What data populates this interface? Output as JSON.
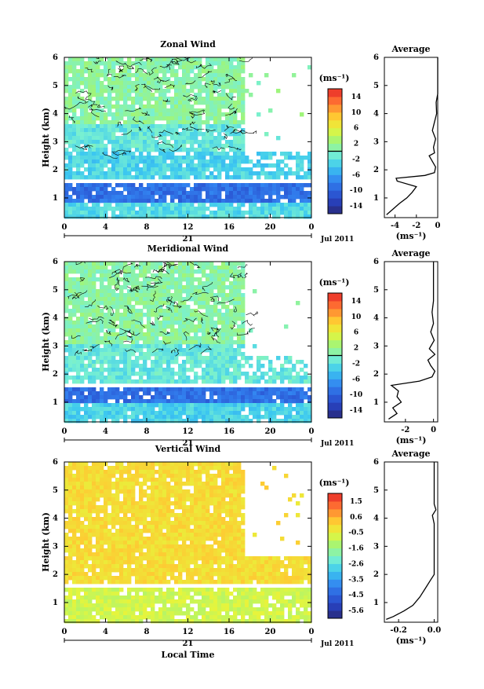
{
  "chart_data": [
    {
      "type": "heatmap",
      "title": "Zonal Wind",
      "ylabel": "Height (km)",
      "xlabel": "",
      "x_ticks": [
        "0",
        "4",
        "8",
        "12",
        "16",
        "20",
        "0"
      ],
      "y_ticks": [
        "1",
        "2",
        "3",
        "4",
        "5",
        "6"
      ],
      "ylim": [
        0.3,
        6.0
      ],
      "xlim": [
        0,
        24
      ],
      "date_day": "21",
      "date_label": "Jul 2011",
      "colorbar": {
        "unit": "(ms⁻¹)",
        "ticks": [
          "14",
          "10",
          "6",
          "2",
          "-2",
          "-6",
          "-10",
          "-14"
        ],
        "min": -16,
        "max": 16,
        "contour_level": 0
      },
      "layers": [
        {
          "z0": 3.6,
          "z1": 6.0,
          "value": 1.0
        },
        {
          "z0": 2.6,
          "z1": 3.6,
          "value": -1.5
        },
        {
          "z0": 1.7,
          "z1": 2.6,
          "value": -3.0
        },
        {
          "z0": 1.5,
          "z1": 1.7,
          "value": null
        },
        {
          "z0": 0.9,
          "z1": 1.5,
          "value": -9.0
        },
        {
          "z0": 0.3,
          "z1": 0.9,
          "value": -2.5
        }
      ],
      "data_end_hour": 17.5,
      "average": {
        "title": "Average",
        "xlabel": "(ms⁻¹)",
        "x_ticks": [
          "-4",
          "-2",
          "0"
        ],
        "xlim": [
          -5,
          0
        ],
        "y_ticks": [
          "1",
          "2",
          "3",
          "4",
          "5",
          "6"
        ],
        "profile": [
          [
            -4.8,
            0.4
          ],
          [
            -4.2,
            0.6
          ],
          [
            -3.6,
            0.8
          ],
          [
            -2.9,
            1.0
          ],
          [
            -2.4,
            1.2
          ],
          [
            -2.0,
            1.4
          ],
          [
            -3.8,
            1.6
          ],
          [
            -3.9,
            1.7
          ],
          [
            -1.2,
            1.8
          ],
          [
            -0.3,
            1.9
          ],
          [
            -0.2,
            2.1
          ],
          [
            -0.5,
            2.3
          ],
          [
            -0.8,
            2.5
          ],
          [
            -0.3,
            2.6
          ],
          [
            -0.4,
            2.8
          ],
          [
            -0.2,
            3.1
          ],
          [
            -0.5,
            3.4
          ],
          [
            -0.3,
            3.7
          ],
          [
            -0.1,
            4.0
          ],
          [
            -0.15,
            4.4
          ],
          [
            0,
            4.7
          ],
          [
            0,
            6.0
          ]
        ]
      }
    },
    {
      "type": "heatmap",
      "title": "Meridional Wind",
      "ylabel": "Height (km)",
      "xlabel": "",
      "x_ticks": [
        "0",
        "4",
        "8",
        "12",
        "16",
        "20",
        "0"
      ],
      "y_ticks": [
        "1",
        "2",
        "3",
        "4",
        "5",
        "6"
      ],
      "ylim": [
        0.3,
        6.0
      ],
      "xlim": [
        0,
        24
      ],
      "date_day": "21",
      "date_label": "Jul 2011",
      "colorbar": {
        "unit": "(ms⁻¹)",
        "ticks": [
          "14",
          "10",
          "6",
          "2",
          "-2",
          "-6",
          "-10",
          "-14"
        ],
        "min": -16,
        "max": 16,
        "contour_level": 0
      },
      "layers": [
        {
          "z0": 3.0,
          "z1": 6.0,
          "value": 1.0
        },
        {
          "z0": 1.7,
          "z1": 3.0,
          "value": -1.5
        },
        {
          "z0": 1.5,
          "z1": 1.7,
          "value": null
        },
        {
          "z0": 1.0,
          "z1": 1.5,
          "value": -9.0
        },
        {
          "z0": 0.3,
          "z1": 1.0,
          "value": -3.0
        }
      ],
      "data_end_hour": 17.5,
      "average": {
        "title": "Average",
        "xlabel": "(ms⁻¹)",
        "x_ticks": [
          "-2",
          "0"
        ],
        "xlim": [
          -3.5,
          0.3
        ],
        "y_ticks": [
          "1",
          "2",
          "3",
          "4",
          "5",
          "6"
        ],
        "profile": [
          [
            -3.2,
            0.4
          ],
          [
            -2.6,
            0.6
          ],
          [
            -2.9,
            0.8
          ],
          [
            -2.3,
            1.0
          ],
          [
            -2.6,
            1.2
          ],
          [
            -2.5,
            1.4
          ],
          [
            -3.0,
            1.6
          ],
          [
            -1.0,
            1.75
          ],
          [
            -0.1,
            1.9
          ],
          [
            0.1,
            2.1
          ],
          [
            -0.2,
            2.3
          ],
          [
            -0.4,
            2.5
          ],
          [
            0.1,
            2.7
          ],
          [
            -0.3,
            2.9
          ],
          [
            0.05,
            3.2
          ],
          [
            -0.2,
            3.5
          ],
          [
            0,
            3.8
          ],
          [
            -0.1,
            4.2
          ],
          [
            0,
            4.6
          ],
          [
            0,
            6.0
          ]
        ]
      }
    },
    {
      "type": "heatmap",
      "title": "Vertical Wind",
      "ylabel": "Height (km)",
      "xlabel": "Local Time",
      "x_ticks": [
        "0",
        "4",
        "8",
        "12",
        "16",
        "20",
        "0"
      ],
      "y_ticks": [
        "1",
        "2",
        "3",
        "4",
        "5",
        "6"
      ],
      "ylim": [
        0.3,
        6.0
      ],
      "xlim": [
        0,
        24
      ],
      "date_day": "21",
      "date_label": "Jul 2011",
      "colorbar": {
        "unit": "(ms⁻¹)",
        "ticks": [
          "1.5",
          "0.6",
          "-0.5",
          "-1.6",
          "-2.6",
          "-3.5",
          "-4.5",
          "-5.6"
        ],
        "min": -6.0,
        "max": 2.0,
        "contour_level": null
      },
      "layers": [
        {
          "z0": 1.7,
          "z1": 6.0,
          "value": -0.1
        },
        {
          "z0": 1.5,
          "z1": 1.7,
          "value": null
        },
        {
          "z0": 0.3,
          "z1": 1.5,
          "value": -0.8
        }
      ],
      "data_end_hour": 17.5,
      "average": {
        "title": "Average",
        "xlabel": "(ms⁻¹)",
        "x_ticks": [
          "-0.2",
          "0.0"
        ],
        "xlim": [
          -0.28,
          0.02
        ],
        "y_ticks": [
          "1",
          "2",
          "3",
          "4",
          "5",
          "6"
        ],
        "profile": [
          [
            -0.27,
            0.4
          ],
          [
            -0.23,
            0.5
          ],
          [
            -0.17,
            0.7
          ],
          [
            -0.12,
            0.9
          ],
          [
            -0.08,
            1.2
          ],
          [
            -0.05,
            1.5
          ],
          [
            -0.02,
            1.8
          ],
          [
            0,
            2.0
          ],
          [
            0,
            3.8
          ],
          [
            -0.01,
            4.1
          ],
          [
            0.01,
            4.3
          ],
          [
            0,
            4.5
          ],
          [
            0,
            6.0
          ]
        ]
      }
    }
  ]
}
